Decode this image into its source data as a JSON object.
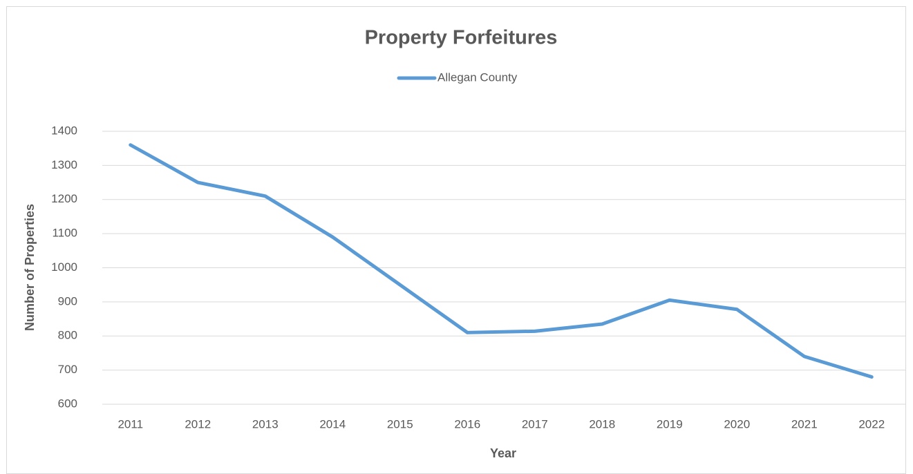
{
  "chart_data": {
    "type": "line",
    "title": "Property Forfeitures",
    "xlabel": "Year",
    "ylabel": "Number of Properties",
    "categories": [
      "2011",
      "2012",
      "2013",
      "2014",
      "2015",
      "2016",
      "2017",
      "2018",
      "2019",
      "2020",
      "2021",
      "2022"
    ],
    "series": [
      {
        "name": "Allegan County",
        "color": "#5b9bd5",
        "values": [
          1360,
          1250,
          1210,
          1090,
          950,
          810,
          814,
          835,
          905,
          878,
          740,
          680
        ]
      }
    ],
    "ylim": [
      600,
      1400
    ],
    "yticks": [
      600,
      700,
      800,
      900,
      1000,
      1100,
      1200,
      1300,
      1400
    ],
    "grid": true,
    "legend": "top"
  }
}
